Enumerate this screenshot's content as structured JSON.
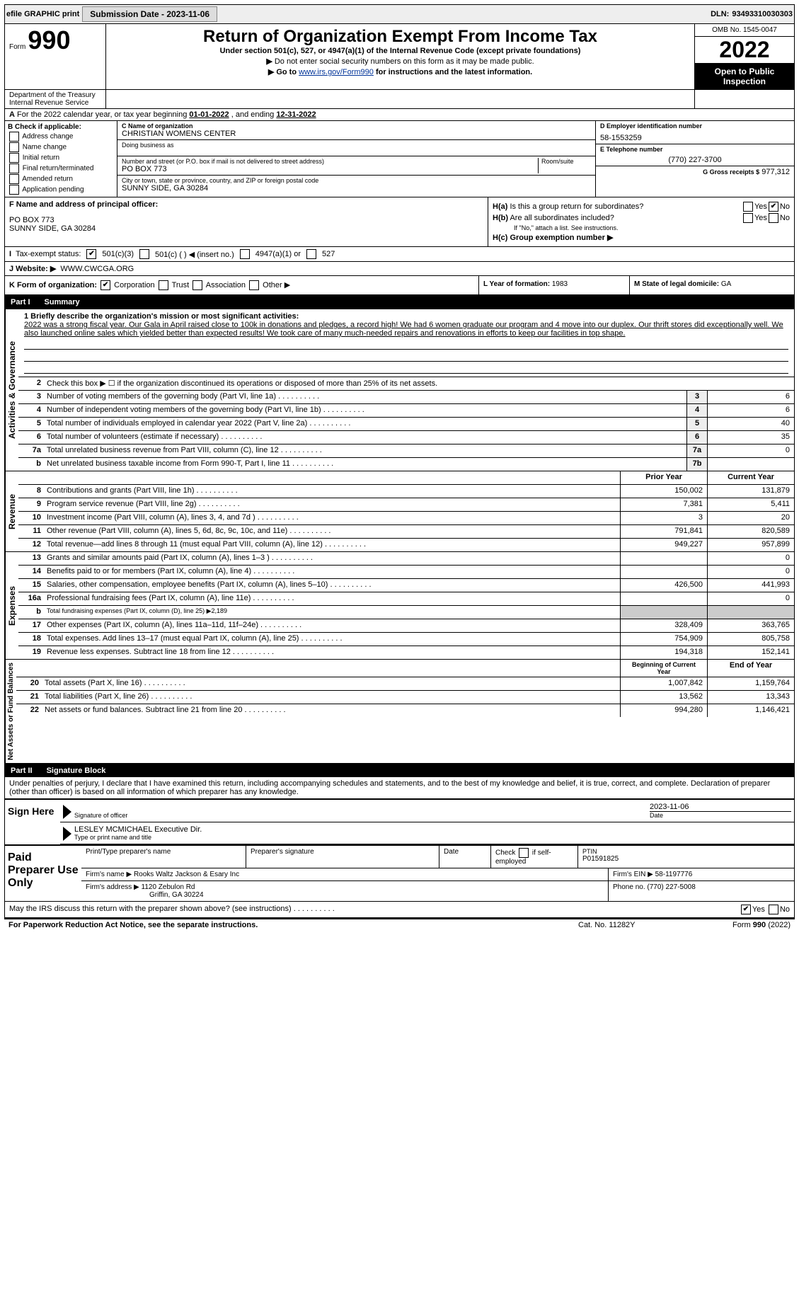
{
  "topbar": {
    "efile": "efile GRAPHIC print",
    "submit_btn": "Submission Date - 2023-11-06",
    "dln_label": "DLN:",
    "dln": "93493310030303"
  },
  "header": {
    "form_word": "Form",
    "form_num": "990",
    "title": "Return of Organization Exempt From Income Tax",
    "subtitle": "Under section 501(c), 527, or 4947(a)(1) of the Internal Revenue Code (except private foundations)",
    "line1": "Do not enter social security numbers on this form as it may be made public.",
    "line2_pre": "Go to ",
    "line2_link": "www.irs.gov/Form990",
    "line2_post": " for instructions and the latest information.",
    "omb": "OMB No. 1545-0047",
    "year": "2022",
    "inspection": "Open to Public Inspection",
    "dept": "Department of the Treasury",
    "irs": "Internal Revenue Service"
  },
  "row_a": {
    "label_a_pre": "A",
    "text": "For the 2022 calendar year, or tax year beginning ",
    "begin": "01-01-2022",
    "mid": " , and ending ",
    "end": "12-31-2022"
  },
  "box_b": {
    "hdr": "B Check if applicable:",
    "items": [
      "Address change",
      "Name change",
      "Initial return",
      "Final return/terminated",
      "Amended return",
      "Application pending"
    ]
  },
  "box_c": {
    "name_lbl": "C Name of organization",
    "name": "CHRISTIAN WOMENS CENTER",
    "dba_lbl": "Doing business as",
    "dba": "",
    "street_lbl": "Number and street (or P.O. box if mail is not delivered to street address)",
    "room_lbl": "Room/suite",
    "street": "PO BOX 773",
    "city_lbl": "City or town, state or province, country, and ZIP or foreign postal code",
    "city": "SUNNY SIDE, GA  30284"
  },
  "box_d": {
    "ein_lbl": "D Employer identification number",
    "ein": "58-1553259",
    "tel_lbl": "E Telephone number",
    "tel": "(770) 227-3700",
    "gross_lbl": "G Gross receipts $",
    "gross": "977,312"
  },
  "box_f": {
    "lbl": "F Name and address of principal officer:",
    "l1": "PO BOX 773",
    "l2": "SUNNY SIDE, GA  30284"
  },
  "box_h": {
    "a_lbl": "H(a)  Is this a group return for subordinates?",
    "b_lbl": "H(b)  Are all subordinates included?",
    "b_note": "If \"No,\" attach a list. See instructions.",
    "c_lbl": "H(c)  Group exemption number ▶",
    "yes": "Yes",
    "no": "No"
  },
  "row_i": {
    "lbl": "Tax-exempt status:",
    "opt1": "501(c)(3)",
    "opt2": "501(c) (   ) ◀ (insert no.)",
    "opt3": "4947(a)(1) or",
    "opt4": "527"
  },
  "row_j": {
    "lbl": "J   Website: ▶",
    "val": "WWW.CWCGA.ORG"
  },
  "row_k": {
    "lbl": "K Form of organization:",
    "opts": [
      "Corporation",
      "Trust",
      "Association",
      "Other ▶"
    ],
    "l_lbl": "L Year of formation:",
    "l_val": "1983",
    "m_lbl": "M State of legal domicile:",
    "m_val": "GA"
  },
  "part1": {
    "hdr_num": "Part I",
    "hdr_txt": "Summary",
    "q1_lbl": "1  Briefly describe the organization's mission or most significant activities:",
    "q1_txt": "2022 was a strong fiscal year. Our Gala in April raised close to 100k in donations and pledges, a record high! We had 6 women graduate our program and 4 move into our duplex. Our thrift stores did exceptionally well. We also launched online sales which yielded better than expected results! We took care of many much-needed repairs and renovations in efforts to keep our facilities in top shape.",
    "q2": "Check this box ▶ ☐  if the organization discontinued its operations or disposed of more than 25% of its net assets.",
    "rows_gov": [
      {
        "n": "3",
        "t": "Number of voting members of the governing body (Part VI, line 1a)",
        "box": "3",
        "v": "6"
      },
      {
        "n": "4",
        "t": "Number of independent voting members of the governing body (Part VI, line 1b)",
        "box": "4",
        "v": "6"
      },
      {
        "n": "5",
        "t": "Total number of individuals employed in calendar year 2022 (Part V, line 2a)",
        "box": "5",
        "v": "40"
      },
      {
        "n": "6",
        "t": "Total number of volunteers (estimate if necessary)",
        "box": "6",
        "v": "35"
      },
      {
        "n": "7a",
        "t": "Total unrelated business revenue from Part VIII, column (C), line 12",
        "box": "7a",
        "v": "0"
      },
      {
        "n": "b",
        "t": "Net unrelated business taxable income from Form 990-T, Part I, line 11",
        "box": "7b",
        "v": ""
      }
    ],
    "col_prior": "Prior Year",
    "col_curr": "Current Year",
    "rows_rev": [
      {
        "n": "8",
        "t": "Contributions and grants (Part VIII, line 1h)",
        "p": "150,002",
        "c": "131,879"
      },
      {
        "n": "9",
        "t": "Program service revenue (Part VIII, line 2g)",
        "p": "7,381",
        "c": "5,411"
      },
      {
        "n": "10",
        "t": "Investment income (Part VIII, column (A), lines 3, 4, and 7d )",
        "p": "3",
        "c": "20"
      },
      {
        "n": "11",
        "t": "Other revenue (Part VIII, column (A), lines 5, 6d, 8c, 9c, 10c, and 11e)",
        "p": "791,841",
        "c": "820,589"
      },
      {
        "n": "12",
        "t": "Total revenue—add lines 8 through 11 (must equal Part VIII, column (A), line 12)",
        "p": "949,227",
        "c": "957,899"
      }
    ],
    "rows_exp": [
      {
        "n": "13",
        "t": "Grants and similar amounts paid (Part IX, column (A), lines 1–3 )",
        "p": "",
        "c": "0"
      },
      {
        "n": "14",
        "t": "Benefits paid to or for members (Part IX, column (A), line 4)",
        "p": "",
        "c": "0"
      },
      {
        "n": "15",
        "t": "Salaries, other compensation, employee benefits (Part IX, column (A), lines 5–10)",
        "p": "426,500",
        "c": "441,993"
      },
      {
        "n": "16a",
        "t": "Professional fundraising fees (Part IX, column (A), line 11e)",
        "p": "",
        "c": "0"
      },
      {
        "n": "b",
        "t": "Total fundraising expenses (Part IX, column (D), line 25) ▶2,189",
        "p": "—",
        "c": "—"
      },
      {
        "n": "17",
        "t": "Other expenses (Part IX, column (A), lines 11a–11d, 11f–24e)",
        "p": "328,409",
        "c": "363,765"
      },
      {
        "n": "18",
        "t": "Total expenses. Add lines 13–17 (must equal Part IX, column (A), line 25)",
        "p": "754,909",
        "c": "805,758"
      },
      {
        "n": "19",
        "t": "Revenue less expenses. Subtract line 18 from line 12",
        "p": "194,318",
        "c": "152,141"
      }
    ],
    "col_begin": "Beginning of Current Year",
    "col_end": "End of Year",
    "rows_net": [
      {
        "n": "20",
        "t": "Total assets (Part X, line 16)",
        "p": "1,007,842",
        "c": "1,159,764"
      },
      {
        "n": "21",
        "t": "Total liabilities (Part X, line 26)",
        "p": "13,562",
        "c": "13,343"
      },
      {
        "n": "22",
        "t": "Net assets or fund balances. Subtract line 21 from line 20",
        "p": "994,280",
        "c": "1,146,421"
      }
    ],
    "side_gov": "Activities & Governance",
    "side_rev": "Revenue",
    "side_exp": "Expenses",
    "side_net": "Net Assets or Fund Balances"
  },
  "part2": {
    "hdr_num": "Part II",
    "hdr_txt": "Signature Block",
    "decl": "Under penalties of perjury, I declare that I have examined this return, including accompanying schedules and statements, and to the best of my knowledge and belief, it is true, correct, and complete. Declaration of preparer (other than officer) is based on all information of which preparer has any knowledge."
  },
  "sign": {
    "left": "Sign Here",
    "sig_lbl": "Signature of officer",
    "date": "2023-11-06",
    "date_lbl": "Date",
    "name": "LESLEY MCMICHAEL Executive Dir.",
    "name_lbl": "Type or print name and title"
  },
  "prep": {
    "left": "Paid Preparer Use Only",
    "h1": "Print/Type preparer's name",
    "h2": "Preparer's signature",
    "h3": "Date",
    "h4_pre": "Check",
    "h4_post": "if self-employed",
    "h5": "PTIN",
    "ptin": "P01591825",
    "firm_name_lbl": "Firm's name   ▶",
    "firm_name": "Rooks Waltz Jackson & Esary Inc",
    "firm_ein_lbl": "Firm's EIN ▶",
    "firm_ein": "58-1197776",
    "firm_addr_lbl": "Firm's address ▶",
    "firm_addr1": "1120 Zebulon Rd",
    "firm_addr2": "Griffin, GA  30224",
    "phone_lbl": "Phone no.",
    "phone": "(770) 227-5008"
  },
  "footer": {
    "discuss": "May the IRS discuss this return with the preparer shown above? (see instructions)",
    "yes": "Yes",
    "no": "No",
    "pra": "For Paperwork Reduction Act Notice, see the separate instructions.",
    "cat": "Cat. No. 11282Y",
    "form": "Form 990 (2022)"
  }
}
